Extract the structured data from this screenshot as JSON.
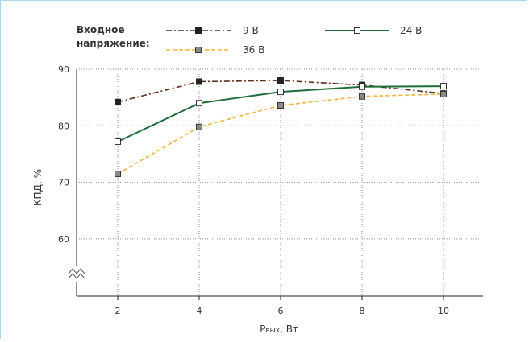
{
  "chart_data": {
    "type": "line",
    "legend_title": "Входное напряжение:",
    "xlabel_main": "P",
    "xlabel_sub": "вых",
    "xlabel_unit": ", Вт",
    "ylabel": "КПД, %",
    "x": [
      2,
      4,
      6,
      8,
      10
    ],
    "x_ticks": [
      "2",
      "4",
      "6",
      "8",
      "10"
    ],
    "y_ticks": [
      60,
      70,
      80,
      90
    ],
    "y_tick_labels": [
      "60",
      "70",
      "80",
      "90"
    ],
    "ylim": [
      60,
      90
    ],
    "axis_break": true,
    "grid": true,
    "legend_position": "top",
    "series": [
      {
        "name": "9 В",
        "values": [
          84.2,
          87.8,
          88.0,
          87.2,
          85.7
        ],
        "color": "#5a2e1d",
        "dash": "7 3 2 3",
        "marker_fill": "#222222",
        "marker_stroke": "#222222"
      },
      {
        "name": "24 В",
        "values": [
          77.2,
          84.0,
          86.0,
          86.9,
          87.0
        ],
        "color": "#1f6e3a",
        "dash": "",
        "marker_fill": "#ffffff",
        "marker_stroke": "#333333"
      },
      {
        "name": "36 В",
        "values": [
          71.5,
          79.8,
          83.6,
          85.2,
          85.6
        ],
        "color": "#f2b43c",
        "dash": "5 3",
        "marker_fill": "#8a8a8a",
        "marker_stroke": "#333333"
      }
    ]
  }
}
